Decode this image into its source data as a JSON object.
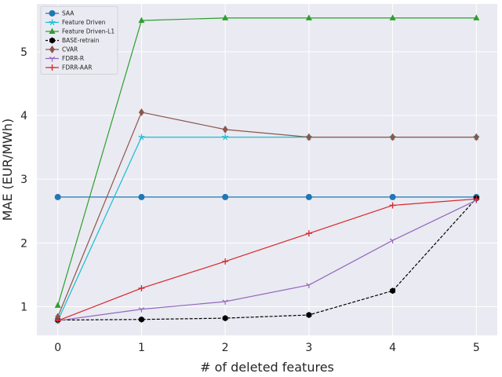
{
  "chart_data": {
    "type": "line",
    "xlabel": "# of deleted features",
    "ylabel": "MAE (EUR/MWh)",
    "x": [
      0,
      1,
      2,
      3,
      4,
      5
    ],
    "xticks": [
      "0",
      "1",
      "2",
      "3",
      "4",
      "5"
    ],
    "yticks": [
      "1",
      "2",
      "3",
      "4",
      "5"
    ],
    "xlim": [
      -0.25,
      5.25
    ],
    "ylim": [
      0.55,
      5.75
    ],
    "grid": true,
    "legend_position": "top-left",
    "series": [
      {
        "name": "SAA",
        "color": "#1f77b4",
        "marker": "circle",
        "dashed": false,
        "values": [
          2.72,
          2.72,
          2.72,
          2.72,
          2.72,
          2.72
        ]
      },
      {
        "name": "Feature Driven",
        "color": "#17becf",
        "marker": "star",
        "dashed": false,
        "values": [
          0.78,
          3.66,
          3.66,
          3.66,
          3.66,
          3.66
        ]
      },
      {
        "name": "Feature Driven-L1",
        "color": "#2ca02c",
        "marker": "triangle",
        "dashed": false,
        "values": [
          1.02,
          5.49,
          5.53,
          5.53,
          5.53,
          5.53
        ]
      },
      {
        "name": "BASE-retrain",
        "color": "#000000",
        "marker": "hexagon",
        "dashed": true,
        "values": [
          0.79,
          0.8,
          0.82,
          0.87,
          1.25,
          2.7
        ]
      },
      {
        "name": "CVAR",
        "color": "#8c564b",
        "marker": "diamond",
        "dashed": false,
        "values": [
          0.84,
          4.05,
          3.78,
          3.66,
          3.66,
          3.66
        ]
      },
      {
        "name": "FDRR-R",
        "color": "#9467bd",
        "marker": "tri_down",
        "dashed": false,
        "values": [
          0.78,
          0.96,
          1.08,
          1.34,
          2.04,
          2.67
        ]
      },
      {
        "name": "FDRR-AAR",
        "color": "#d62728",
        "marker": "plus",
        "dashed": false,
        "values": [
          0.78,
          1.29,
          1.71,
          2.15,
          2.59,
          2.69
        ]
      }
    ]
  }
}
